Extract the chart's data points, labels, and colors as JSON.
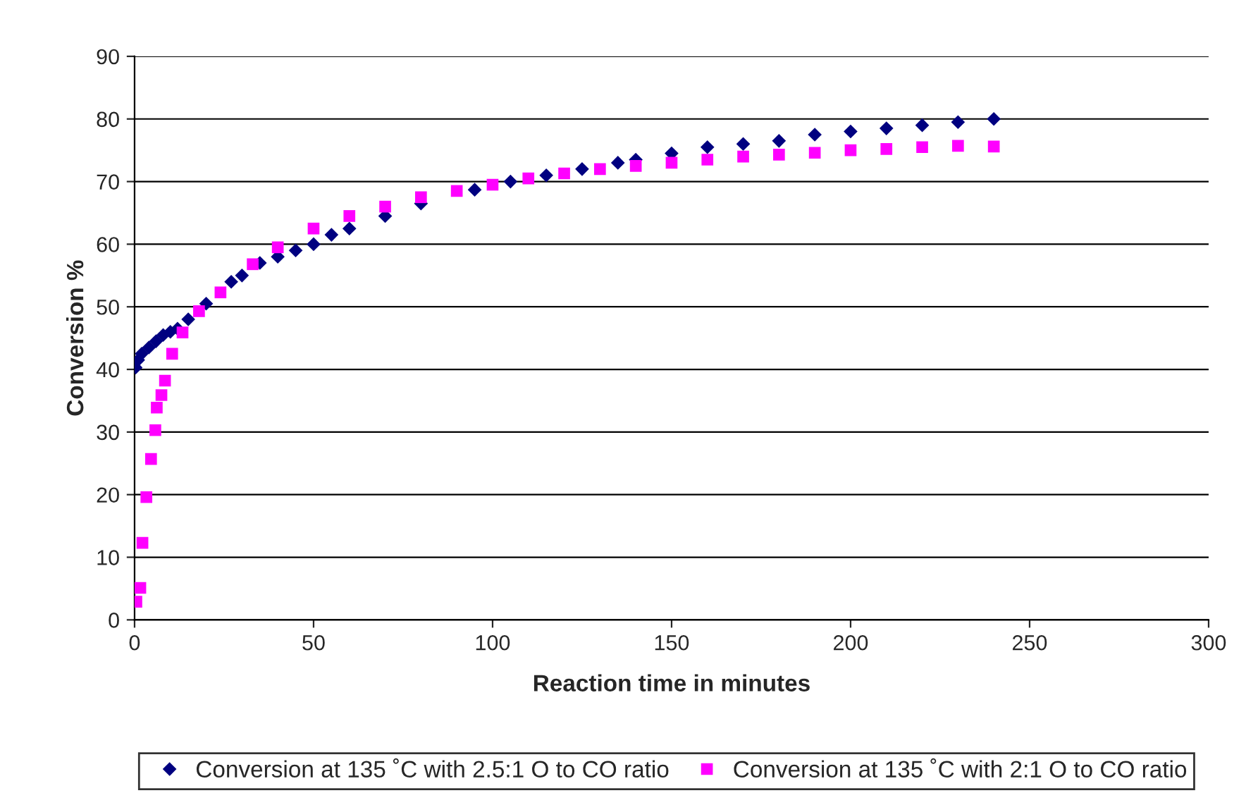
{
  "chart_data": {
    "type": "scatter",
    "xlabel": "Reaction time in minutes",
    "ylabel": "Conversion %",
    "xlim": [
      0,
      300
    ],
    "xticks": [
      0,
      50,
      100,
      150,
      200,
      250,
      300
    ],
    "ylim": [
      0,
      90
    ],
    "yticks": [
      0,
      10,
      20,
      30,
      40,
      50,
      60,
      70,
      80,
      90
    ],
    "grid": "y",
    "legend": "bottom",
    "series": [
      {
        "name": "Conversion at 135 ˚C with 2.5:1 O to CO ratio",
        "color": "#000080",
        "marker": "diamond",
        "x": [
          0.3,
          1,
          2,
          4,
          6,
          8,
          10,
          12,
          15,
          20,
          27,
          30,
          35,
          40,
          45,
          50,
          55,
          60,
          70,
          80,
          95,
          105,
          115,
          125,
          135,
          140,
          150,
          160,
          170,
          180,
          190,
          200,
          210,
          220,
          230,
          240
        ],
        "values": [
          40.3,
          41.5,
          42.5,
          43.5,
          44.5,
          45.5,
          46,
          46.5,
          48,
          50.5,
          54,
          55,
          57,
          58,
          59,
          60,
          61.5,
          62.5,
          64.5,
          66.5,
          68.7,
          70,
          71,
          72,
          73,
          73.5,
          74.5,
          75.5,
          76,
          76.5,
          77.5,
          78,
          78.5,
          79,
          79.5,
          80
        ]
      },
      {
        "name": "Conversion at 135 ˚C with 2:1 O to CO ratio",
        "color": "#ff00ff",
        "marker": "square",
        "x": [
          0.5,
          1.6,
          2.2,
          3.3,
          4.6,
          5.8,
          6.2,
          7.5,
          8.5,
          10.5,
          13.4,
          18,
          24,
          33,
          40,
          50,
          60,
          70,
          80,
          90,
          100,
          110,
          120,
          130,
          140,
          150,
          160,
          170,
          180,
          190,
          200,
          210,
          220,
          230,
          240
        ],
        "values": [
          2.9,
          5.1,
          12.3,
          19.6,
          25.7,
          30.3,
          33.9,
          35.9,
          38.2,
          42.5,
          45.9,
          49.3,
          52.3,
          56.8,
          59.5,
          62.5,
          64.5,
          66,
          67.5,
          68.5,
          69.5,
          70.5,
          71.3,
          72,
          72.5,
          73,
          73.5,
          74,
          74.3,
          74.6,
          75,
          75.2,
          75.5,
          75.7,
          75.6
        ]
      }
    ]
  }
}
